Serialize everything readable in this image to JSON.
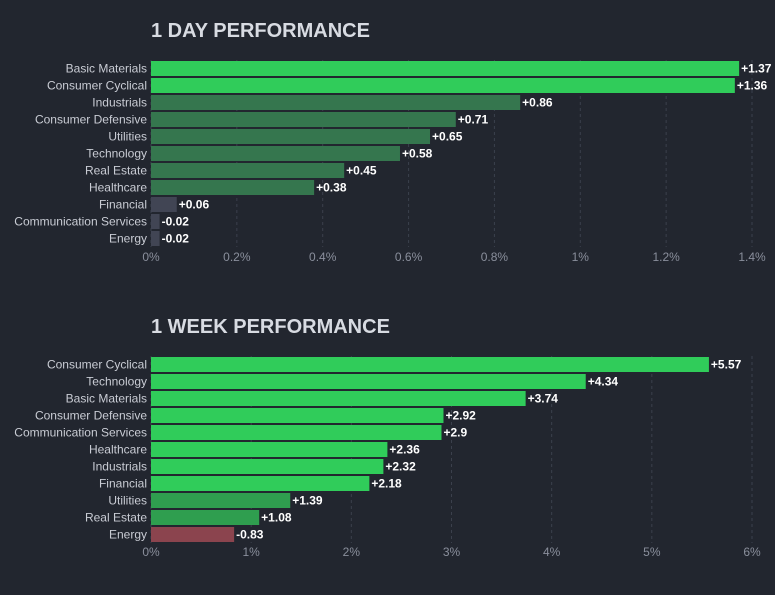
{
  "chart_data": [
    {
      "type": "bar",
      "orientation": "horizontal",
      "title": "1 DAY PERFORMANCE",
      "categories": [
        "Basic Materials",
        "Consumer Cyclical",
        "Industrials",
        "Consumer Defensive",
        "Utilities",
        "Technology",
        "Real Estate",
        "Healthcare",
        "Financial",
        "Communication Services",
        "Energy"
      ],
      "values": [
        1.37,
        1.36,
        0.86,
        0.71,
        0.65,
        0.58,
        0.45,
        0.38,
        0.06,
        -0.02,
        -0.02
      ],
      "value_labels": [
        "+1.37",
        "+1.36",
        "+0.86",
        "+0.71",
        "+0.65",
        "+0.58",
        "+0.45",
        "+0.38",
        "+0.06",
        "-0.02",
        "-0.02"
      ],
      "xticks": [
        "0%",
        "0.2%",
        "0.4%",
        "0.6%",
        "0.8%",
        "1%",
        "1.2%",
        "1.4%"
      ],
      "xlim": [
        0,
        1.4
      ],
      "grid": true
    },
    {
      "type": "bar",
      "orientation": "horizontal",
      "title": "1 WEEK PERFORMANCE",
      "categories": [
        "Consumer Cyclical",
        "Technology",
        "Basic Materials",
        "Consumer Defensive",
        "Communication Services",
        "Healthcare",
        "Industrials",
        "Financial",
        "Utilities",
        "Real Estate",
        "Energy"
      ],
      "values": [
        5.57,
        4.34,
        3.74,
        2.92,
        2.9,
        2.36,
        2.32,
        2.18,
        1.39,
        1.08,
        -0.83
      ],
      "value_labels": [
        "+5.57",
        "+4.34",
        "+3.74",
        "+2.92",
        "+2.9",
        "+2.36",
        "+2.32",
        "+2.18",
        "+1.39",
        "+1.08",
        "-0.83"
      ],
      "xticks": [
        "0%",
        "1%",
        "2%",
        "3%",
        "4%",
        "5%",
        "6%"
      ],
      "xlim": [
        0,
        6
      ],
      "grid": true
    }
  ],
  "colors": {
    "background": "#22262f",
    "strong_gain": "#30cc5a",
    "moderate_gain": "#2f9e4f",
    "mild_gain": "#35764e",
    "neutral": "#414554",
    "loss": "#8b444e"
  }
}
